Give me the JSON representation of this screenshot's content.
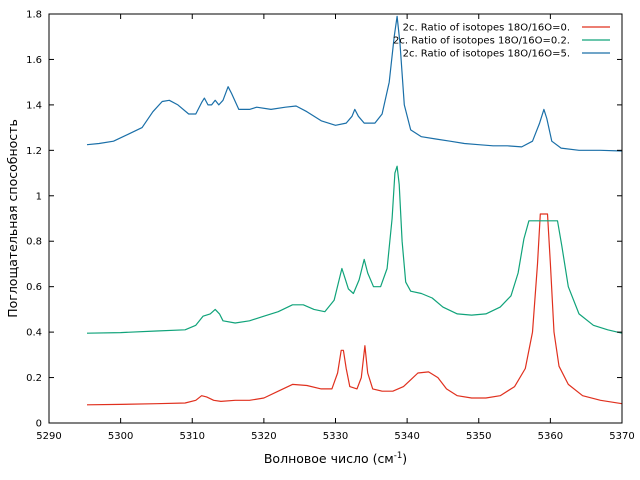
{
  "chart_data": {
    "type": "line",
    "xlabel": "Волновое число (см",
    "xlabel_sup": "-1",
    "xlabel_tail": ")",
    "ylabel": "Поглощательная способность",
    "xlim": [
      5290,
      5370
    ],
    "ylim": [
      0,
      1.8
    ],
    "x_ticks": [
      5290,
      5300,
      5310,
      5320,
      5330,
      5340,
      5350,
      5360,
      5370
    ],
    "y_ticks": [
      0,
      0.2,
      0.4,
      0.6,
      0.8,
      1,
      1.2,
      1.4,
      1.6,
      1.8
    ],
    "y_tick_labels": [
      "0",
      "0.2",
      "0.4",
      "0.6",
      "0.8",
      "1",
      "1.2",
      "1.4",
      "1.6",
      "1.8"
    ],
    "grid": false,
    "legend_position": "top-right",
    "series": [
      {
        "name": "2c. Ratio of isotopes 18O/16O=0.",
        "color": "#e0301e",
        "points": [
          [
            5295.3,
            0.08
          ],
          [
            5300,
            0.082
          ],
          [
            5305,
            0.085
          ],
          [
            5309,
            0.088
          ],
          [
            5310.5,
            0.1
          ],
          [
            5311.3,
            0.12
          ],
          [
            5312,
            0.115
          ],
          [
            5313,
            0.1
          ],
          [
            5314,
            0.095
          ],
          [
            5316,
            0.1
          ],
          [
            5318,
            0.1
          ],
          [
            5320,
            0.11
          ],
          [
            5322,
            0.14
          ],
          [
            5324,
            0.17
          ],
          [
            5326,
            0.165
          ],
          [
            5328,
            0.15
          ],
          [
            5329.5,
            0.15
          ],
          [
            5330.3,
            0.22
          ],
          [
            5330.8,
            0.32
          ],
          [
            5331.1,
            0.32
          ],
          [
            5331.5,
            0.24
          ],
          [
            5332,
            0.16
          ],
          [
            5333,
            0.15
          ],
          [
            5333.6,
            0.2
          ],
          [
            5334.1,
            0.34
          ],
          [
            5334.5,
            0.22
          ],
          [
            5335.2,
            0.15
          ],
          [
            5336.5,
            0.14
          ],
          [
            5338,
            0.14
          ],
          [
            5339.5,
            0.16
          ],
          [
            5340.5,
            0.19
          ],
          [
            5341.5,
            0.22
          ],
          [
            5343,
            0.225
          ],
          [
            5344.3,
            0.2
          ],
          [
            5345.5,
            0.15
          ],
          [
            5347,
            0.12
          ],
          [
            5349,
            0.11
          ],
          [
            5351,
            0.11
          ],
          [
            5353,
            0.12
          ],
          [
            5355,
            0.16
          ],
          [
            5356.5,
            0.24
          ],
          [
            5357.5,
            0.4
          ],
          [
            5358.2,
            0.7
          ],
          [
            5358.6,
            0.92
          ],
          [
            5359.4,
            0.92
          ],
          [
            5359.6,
            0.92
          ],
          [
            5360,
            0.7
          ],
          [
            5360.5,
            0.4
          ],
          [
            5361.2,
            0.25
          ],
          [
            5362.5,
            0.17
          ],
          [
            5364.5,
            0.12
          ],
          [
            5367,
            0.1
          ],
          [
            5370,
            0.085
          ]
        ]
      },
      {
        "name": "2c. Ratio of isotopes 18O/16O=0.2.",
        "color": "#10a37a",
        "points": [
          [
            5295.3,
            0.395
          ],
          [
            5300,
            0.398
          ],
          [
            5305,
            0.405
          ],
          [
            5309,
            0.41
          ],
          [
            5310.5,
            0.43
          ],
          [
            5311.5,
            0.47
          ],
          [
            5312.5,
            0.48
          ],
          [
            5313.2,
            0.5
          ],
          [
            5313.8,
            0.48
          ],
          [
            5314.3,
            0.45
          ],
          [
            5316,
            0.44
          ],
          [
            5318,
            0.45
          ],
          [
            5320,
            0.47
          ],
          [
            5322,
            0.49
          ],
          [
            5324,
            0.52
          ],
          [
            5325.5,
            0.52
          ],
          [
            5327,
            0.5
          ],
          [
            5328.5,
            0.49
          ],
          [
            5329.8,
            0.54
          ],
          [
            5330.5,
            0.63
          ],
          [
            5330.9,
            0.68
          ],
          [
            5331.3,
            0.64
          ],
          [
            5331.8,
            0.59
          ],
          [
            5332.5,
            0.57
          ],
          [
            5333.3,
            0.63
          ],
          [
            5334,
            0.72
          ],
          [
            5334.5,
            0.66
          ],
          [
            5335.3,
            0.6
          ],
          [
            5336.3,
            0.6
          ],
          [
            5337.2,
            0.68
          ],
          [
            5337.9,
            0.9
          ],
          [
            5338.3,
            1.1
          ],
          [
            5338.6,
            1.13
          ],
          [
            5338.9,
            1.05
          ],
          [
            5339.3,
            0.8
          ],
          [
            5339.8,
            0.62
          ],
          [
            5340.5,
            0.58
          ],
          [
            5342,
            0.57
          ],
          [
            5343.5,
            0.55
          ],
          [
            5345,
            0.51
          ],
          [
            5347,
            0.48
          ],
          [
            5349,
            0.475
          ],
          [
            5351,
            0.48
          ],
          [
            5353,
            0.51
          ],
          [
            5354.5,
            0.56
          ],
          [
            5355.5,
            0.66
          ],
          [
            5356.3,
            0.81
          ],
          [
            5357,
            0.89
          ],
          [
            5358,
            0.89
          ],
          [
            5360,
            0.89
          ],
          [
            5361,
            0.89
          ],
          [
            5361.6,
            0.78
          ],
          [
            5362.5,
            0.6
          ],
          [
            5364,
            0.48
          ],
          [
            5366,
            0.43
          ],
          [
            5368,
            0.41
          ],
          [
            5370,
            0.395
          ]
        ]
      },
      {
        "name": "2c. Ratio of isotopes 18O/16O=5.",
        "color": "#1a6fa8",
        "points": [
          [
            5295.3,
            1.225
          ],
          [
            5297,
            1.23
          ],
          [
            5299,
            1.24
          ],
          [
            5301,
            1.27
          ],
          [
            5303,
            1.3
          ],
          [
            5304.5,
            1.37
          ],
          [
            5305.8,
            1.415
          ],
          [
            5306.8,
            1.42
          ],
          [
            5308,
            1.4
          ],
          [
            5309.5,
            1.36
          ],
          [
            5310.5,
            1.36
          ],
          [
            5311.3,
            1.41
          ],
          [
            5311.7,
            1.43
          ],
          [
            5312.2,
            1.4
          ],
          [
            5312.7,
            1.4
          ],
          [
            5313.2,
            1.42
          ],
          [
            5313.7,
            1.4
          ],
          [
            5314.3,
            1.42
          ],
          [
            5315,
            1.48
          ],
          [
            5315.5,
            1.45
          ],
          [
            5316.5,
            1.38
          ],
          [
            5318,
            1.38
          ],
          [
            5319,
            1.39
          ],
          [
            5321,
            1.38
          ],
          [
            5323,
            1.39
          ],
          [
            5324.5,
            1.395
          ],
          [
            5326,
            1.37
          ],
          [
            5328,
            1.33
          ],
          [
            5330,
            1.31
          ],
          [
            5331.5,
            1.32
          ],
          [
            5332.3,
            1.35
          ],
          [
            5332.7,
            1.38
          ],
          [
            5333.2,
            1.35
          ],
          [
            5334,
            1.32
          ],
          [
            5335.5,
            1.32
          ],
          [
            5336.5,
            1.36
          ],
          [
            5337.5,
            1.5
          ],
          [
            5338.2,
            1.7
          ],
          [
            5338.6,
            1.79
          ],
          [
            5339,
            1.67
          ],
          [
            5339.6,
            1.4
          ],
          [
            5340.5,
            1.29
          ],
          [
            5342,
            1.26
          ],
          [
            5344,
            1.25
          ],
          [
            5346,
            1.24
          ],
          [
            5348,
            1.23
          ],
          [
            5350,
            1.225
          ],
          [
            5352,
            1.22
          ],
          [
            5354,
            1.22
          ],
          [
            5356,
            1.215
          ],
          [
            5357.5,
            1.24
          ],
          [
            5358.5,
            1.32
          ],
          [
            5359.1,
            1.38
          ],
          [
            5359.5,
            1.34
          ],
          [
            5360.2,
            1.24
          ],
          [
            5361.5,
            1.21
          ],
          [
            5364,
            1.2
          ],
          [
            5367,
            1.2
          ],
          [
            5370,
            1.197
          ]
        ]
      }
    ]
  }
}
